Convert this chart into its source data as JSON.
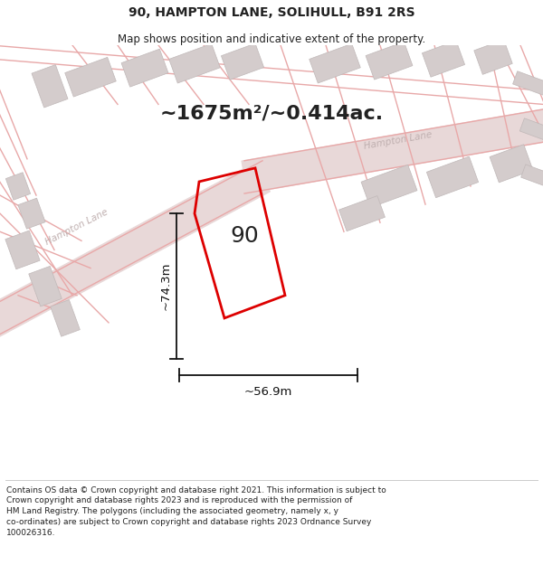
{
  "title": "90, HAMPTON LANE, SOLIHULL, B91 2RS",
  "subtitle": "Map shows position and indicative extent of the property.",
  "footer": "Contains OS data © Crown copyright and database right 2021. This information is subject to Crown copyright and database rights 2023 and is reproduced with the permission of HM Land Registry. The polygons (including the associated geometry, namely x, y co-ordinates) are subject to Crown copyright and database rights 2023 Ordnance Survey 100026316.",
  "bg_color": "#ffffff",
  "map_bg_color": "#f7f3f3",
  "area_label": "~1675m²/~0.414ac.",
  "number_label": "90",
  "width_label": "~56.9m",
  "height_label": "~74.3m",
  "red_color": "#dd0000",
  "road_fill": "#e8d8d8",
  "road_line": "#e8a8a8",
  "building_fill": "#d4cccc",
  "building_edge": "#c0b8b8",
  "road_label_color": "#c0b0b0",
  "dim_color": "#111111",
  "text_color": "#222222",
  "title_fontsize": 10,
  "subtitle_fontsize": 8.5,
  "area_fontsize": 16,
  "number_fontsize": 18,
  "dim_fontsize": 9.5,
  "footer_fontsize": 6.5
}
